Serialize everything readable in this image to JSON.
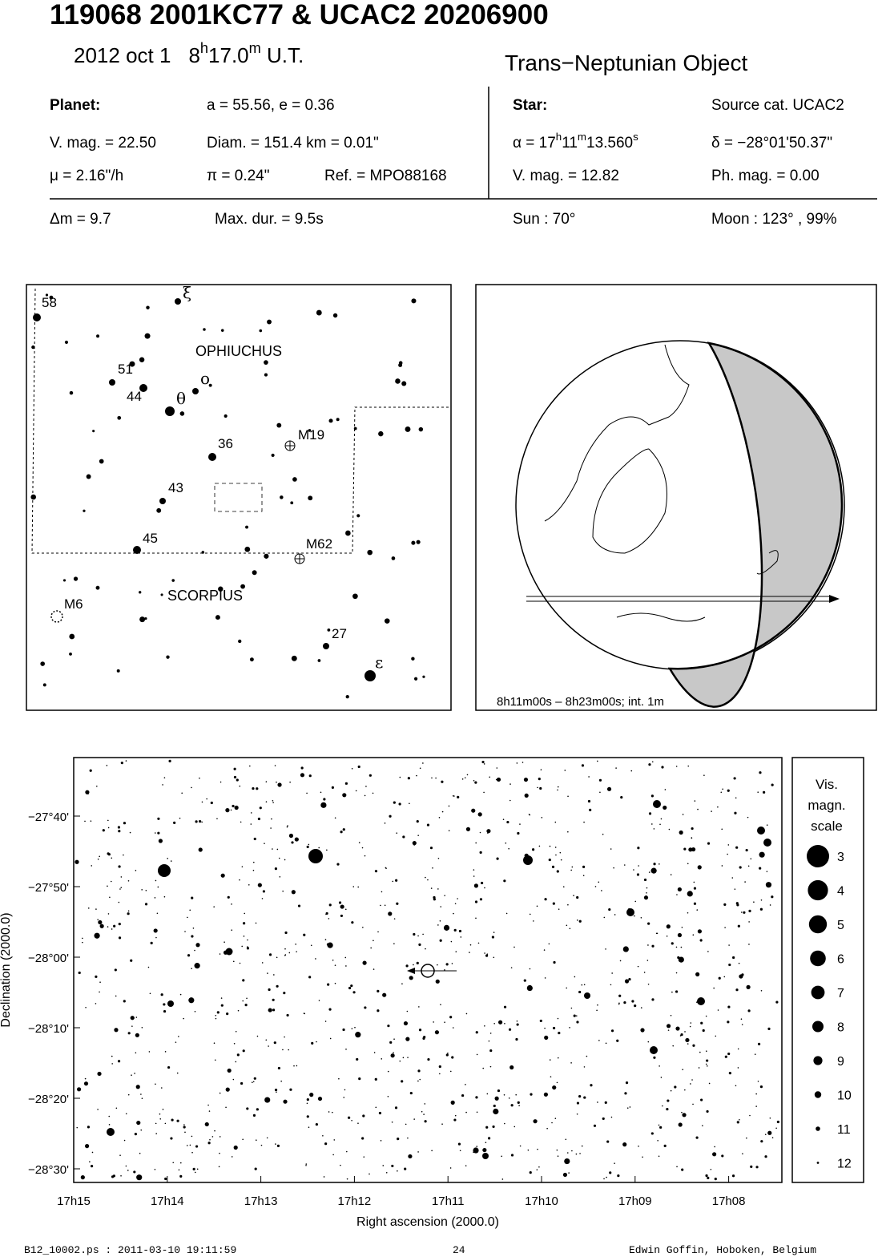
{
  "header": {
    "title": "119068 2001KC77  &  UCAC2 20206900",
    "date": "2012 oct  1",
    "time": [
      "8",
      "h",
      "17.0",
      "m",
      " U.T."
    ],
    "object_type": "Trans−Neptunian Object"
  },
  "planet": {
    "heading": "Planet:",
    "orbit": "a = 55.56, e = 0.36",
    "vmag": "V. mag. = 22.50",
    "diam": "Diam. = 151.4 km = 0.01\"",
    "motion": "μ =  2.16\"/h",
    "parallax": "π =  0.24\"",
    "ref": "Ref. = MPO88168"
  },
  "star": {
    "heading": "Star:",
    "source": "Source cat.  UCAC2",
    "ra": [
      "α = 17",
      "h",
      "11",
      "m",
      "13.560",
      "s"
    ],
    "dec": "δ = −28°01'50.37\"",
    "vmag": "V. mag. = 12.82",
    "phmag": "Ph. mag. =  0.00"
  },
  "event": {
    "dmag": "Δm = 9.7",
    "max_dur": "Max. dur. = 9.5s",
    "sun": "Sun :  70°",
    "moon": "Moon : 123° , 99%"
  },
  "finder_chart": {
    "constellations": [
      "OPHIUCHUS",
      "SCORPIUS"
    ],
    "labels": [
      "58",
      "ξ",
      "51",
      "ο",
      "44",
      "θ",
      "36",
      "M19",
      "43",
      "45",
      "M62",
      "M6",
      "27",
      "ε"
    ]
  },
  "globe": {
    "caption": "8h11m00s –  8h23m00s; int.  1m"
  },
  "star_chart": {
    "y_axis_label": "Declination (2000.0)",
    "x_axis_label": "Right ascension (2000.0)",
    "dec_ticks": [
      "−27°40'",
      "−27°50'",
      "−28°00'",
      "−28°10'",
      "−28°20'",
      "−28°30'"
    ],
    "ra_ticks": [
      "17h15",
      "17h14",
      "17h13",
      "17h12",
      "17h11",
      "17h10",
      "17h09",
      "17h08"
    ],
    "scale_title": [
      "Vis.",
      "magn.",
      "scale"
    ],
    "scale_magnitudes": [
      3,
      4,
      5,
      6,
      7,
      8,
      9,
      10,
      11,
      12
    ]
  },
  "footer": {
    "file": "B12_10002.ps : 2011-03-10 19:11:59",
    "page": "24",
    "author": "Edwin Goffin, Hoboken, Belgium"
  }
}
